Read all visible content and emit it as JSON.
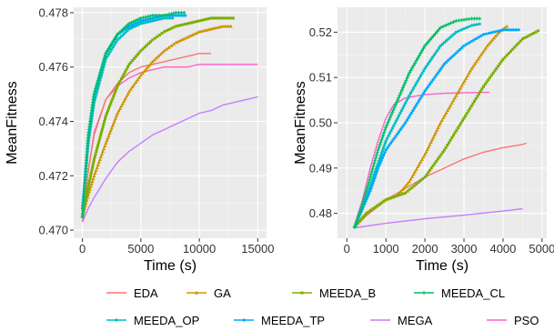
{
  "chart_data": [
    {
      "type": "line",
      "xlabel": "Time (s)",
      "ylabel": "MeanFitness",
      "xlim": [
        -750,
        15750
      ],
      "ylim": [
        0.4697,
        0.4782
      ],
      "xticks": [
        0,
        5000,
        10000,
        15000
      ],
      "yticks": [
        0.47,
        0.472,
        0.474,
        0.476,
        0.478
      ],
      "xtick_labels": [
        "0",
        "5000",
        "10000",
        "15000"
      ],
      "ytick_labels": [
        "0.470",
        "0.472",
        "0.474",
        "0.476",
        "0.478"
      ],
      "grid": true,
      "series": [
        {
          "name": "EDA",
          "x": [
            0,
            500,
            1000,
            2000,
            3000,
            4000,
            5000,
            6000,
            7000,
            8000,
            9000,
            10000,
            11000
          ],
          "y": [
            0.4705,
            0.4722,
            0.4735,
            0.4748,
            0.4754,
            0.4758,
            0.476,
            0.4761,
            0.4762,
            0.4763,
            0.4764,
            0.4765,
            0.4765
          ]
        },
        {
          "name": "GA",
          "x": [
            0,
            500,
            1000,
            2000,
            3000,
            4000,
            5000,
            6000,
            7000,
            8000,
            9000,
            10000,
            11000,
            12000,
            12700
          ],
          "y": [
            0.4705,
            0.4713,
            0.472,
            0.4732,
            0.4743,
            0.4751,
            0.4757,
            0.4762,
            0.4766,
            0.4769,
            0.4771,
            0.4773,
            0.4774,
            0.4775,
            0.4775
          ]
        },
        {
          "name": "MEEDA_B",
          "x": [
            0,
            500,
            1000,
            2000,
            3000,
            4000,
            5000,
            6000,
            7000,
            8000,
            9000,
            10000,
            11000,
            12000,
            12900
          ],
          "y": [
            0.4705,
            0.4716,
            0.4726,
            0.4742,
            0.4753,
            0.4761,
            0.4766,
            0.477,
            0.4773,
            0.4775,
            0.4776,
            0.4777,
            0.4778,
            0.4778,
            0.4778
          ]
        },
        {
          "name": "MEEDA_CL",
          "x": [
            0,
            500,
            1000,
            2000,
            3000,
            4000,
            5000,
            6000,
            7000,
            8000,
            8700
          ],
          "y": [
            0.4705,
            0.4735,
            0.475,
            0.4765,
            0.4772,
            0.4776,
            0.4778,
            0.4779,
            0.4779,
            0.478,
            0.478
          ]
        },
        {
          "name": "MEEDA_OP",
          "x": [
            0,
            500,
            1000,
            2000,
            3000,
            4000,
            5000,
            6000,
            7000,
            7700
          ],
          "y": [
            0.4708,
            0.4732,
            0.4747,
            0.4763,
            0.477,
            0.4774,
            0.4776,
            0.4777,
            0.4778,
            0.4778
          ]
        },
        {
          "name": "MEEDA_TP",
          "x": [
            0,
            500,
            1000,
            2000,
            3000,
            4000,
            5000,
            6000,
            7000,
            8000,
            8800
          ],
          "y": [
            0.4708,
            0.4734,
            0.475,
            0.4765,
            0.4772,
            0.4775,
            0.4777,
            0.4778,
            0.4779,
            0.4779,
            0.4779
          ]
        },
        {
          "name": "MEGA",
          "x": [
            0,
            500,
            1000,
            2000,
            3000,
            4000,
            5000,
            6000,
            7000,
            8000,
            9000,
            10000,
            11000,
            12000,
            13000,
            14000,
            15000
          ],
          "y": [
            0.4703,
            0.4708,
            0.4712,
            0.4719,
            0.4725,
            0.4729,
            0.4732,
            0.4735,
            0.4737,
            0.4739,
            0.4741,
            0.4743,
            0.4744,
            0.4746,
            0.4747,
            0.4748,
            0.4749
          ]
        },
        {
          "name": "PSO",
          "x": [
            0,
            500,
            1000,
            2000,
            3000,
            4000,
            5000,
            6000,
            7000,
            8000,
            9000,
            10000,
            11000,
            12000,
            13000,
            14000,
            15000
          ],
          "y": [
            0.4703,
            0.4722,
            0.4736,
            0.4748,
            0.4753,
            0.4756,
            0.4758,
            0.4759,
            0.476,
            0.476,
            0.476,
            0.4761,
            0.4761,
            0.4761,
            0.4761,
            0.4761,
            0.4761
          ]
        }
      ]
    },
    {
      "type": "line",
      "xlabel": "Time (s)",
      "ylabel": "MeanFitness",
      "xlim": [
        -240,
        5120
      ],
      "ylim": [
        0.4745,
        0.5255
      ],
      "xticks": [
        0,
        1000,
        2000,
        3000,
        4000,
        5000
      ],
      "yticks": [
        0.48,
        0.49,
        0.5,
        0.51,
        0.52
      ],
      "xtick_labels": [
        "0",
        "1000",
        "2000",
        "3000",
        "4000",
        "5000"
      ],
      "ytick_labels": [
        "0.48",
        "0.49",
        "0.50",
        "0.51",
        "0.52"
      ],
      "grid": true,
      "series": [
        {
          "name": "EDA",
          "x": [
            200,
            500,
            800,
            1000,
            1500,
            2000,
            2500,
            3000,
            3500,
            4000,
            4500,
            4600
          ],
          "y": [
            0.477,
            0.4795,
            0.4815,
            0.483,
            0.4855,
            0.488,
            0.49,
            0.492,
            0.4935,
            0.4945,
            0.4952,
            0.4955
          ]
        },
        {
          "name": "GA",
          "x": [
            200,
            500,
            1000,
            1300,
            1600,
            2000,
            2400,
            2800,
            3200,
            3600,
            3900,
            4100
          ],
          "y": [
            0.477,
            0.48,
            0.483,
            0.484,
            0.487,
            0.493,
            0.5,
            0.506,
            0.512,
            0.517,
            0.52,
            0.5213
          ]
        },
        {
          "name": "MEEDA_B",
          "x": [
            200,
            500,
            1000,
            1500,
            2000,
            2500,
            3000,
            3500,
            4000,
            4500,
            4900
          ],
          "y": [
            0.477,
            0.48,
            0.483,
            0.4845,
            0.488,
            0.494,
            0.501,
            0.508,
            0.514,
            0.5185,
            0.5203
          ]
        },
        {
          "name": "MEEDA_CL",
          "x": [
            200,
            400,
            600,
            800,
            1000,
            1300,
            1600,
            2000,
            2400,
            2800,
            3200,
            3400
          ],
          "y": [
            0.477,
            0.482,
            0.488,
            0.494,
            0.499,
            0.505,
            0.511,
            0.517,
            0.521,
            0.5225,
            0.523,
            0.523
          ]
        },
        {
          "name": "MEEDA_OP",
          "x": [
            200,
            400,
            600,
            800,
            1000,
            1300,
            1600,
            2000,
            2400,
            2800,
            3200,
            3400
          ],
          "y": [
            0.477,
            0.481,
            0.486,
            0.491,
            0.496,
            0.501,
            0.506,
            0.512,
            0.517,
            0.52,
            0.5215,
            0.5218
          ]
        },
        {
          "name": "MEEDA_TP",
          "x": [
            200,
            400,
            600,
            800,
            1000,
            1500,
            2000,
            2500,
            3000,
            3500,
            4000,
            4400
          ],
          "y": [
            0.477,
            0.481,
            0.485,
            0.49,
            0.494,
            0.5,
            0.507,
            0.513,
            0.517,
            0.5195,
            0.5205,
            0.5205
          ]
        },
        {
          "name": "MEGA",
          "x": [
            200,
            1000,
            2000,
            3000,
            4000,
            4500
          ],
          "y": [
            0.4768,
            0.4778,
            0.4788,
            0.4796,
            0.4805,
            0.481
          ]
        },
        {
          "name": "PSO",
          "x": [
            200,
            400,
            600,
            800,
            1000,
            1200,
            1500,
            2000,
            2500,
            3000,
            3500,
            3650
          ],
          "y": [
            0.4775,
            0.483,
            0.49,
            0.496,
            0.501,
            0.504,
            0.5055,
            0.5062,
            0.5065,
            0.5066,
            0.5067,
            0.5067
          ]
        }
      ]
    }
  ],
  "legend": {
    "items": [
      {
        "name": "EDA",
        "color": "#F8766D",
        "marker": "none"
      },
      {
        "name": "GA",
        "color": "#CD9600",
        "marker": "triangle"
      },
      {
        "name": "MEEDA_B",
        "color": "#7CAE00",
        "marker": "square"
      },
      {
        "name": "MEEDA_CL",
        "color": "#00BE67",
        "marker": "plus"
      },
      {
        "name": "MEEDA_OP",
        "color": "#00BFC4",
        "marker": "circle"
      },
      {
        "name": "MEEDA_TP",
        "color": "#00A9FF",
        "marker": "circle"
      },
      {
        "name": "MEGA",
        "color": "#C77CFF",
        "marker": "none"
      },
      {
        "name": "PSO",
        "color": "#FF61CC",
        "marker": "none"
      }
    ]
  }
}
